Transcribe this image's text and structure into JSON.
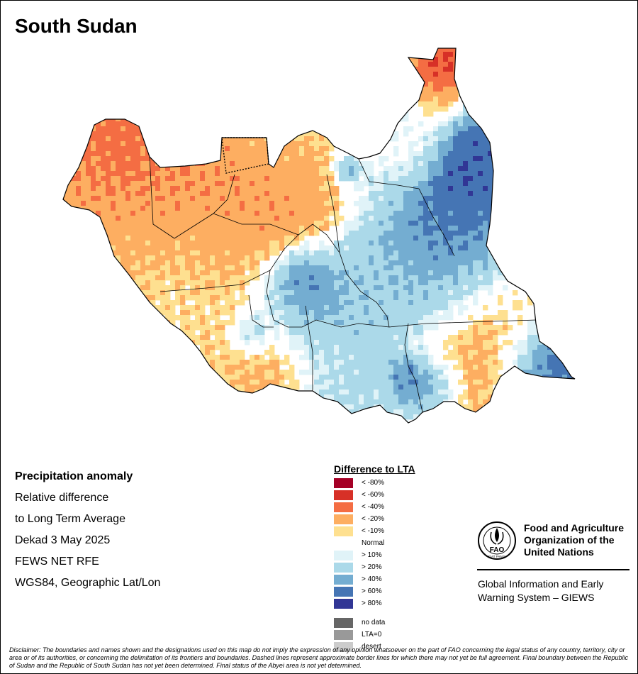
{
  "map": {
    "title": "South Sudan"
  },
  "info": {
    "heading": "Precipitation anomaly",
    "line1": "Relative difference",
    "line2": "to Long Term Average",
    "period": "Dekad 3 May 2025",
    "source": "FEWS NET RFE",
    "projection": "WGS84, Geographic Lat/Lon"
  },
  "legend": {
    "title": "Difference to LTA",
    "items": [
      {
        "label": "< -80%",
        "color": "#a50026"
      },
      {
        "label": "< -60%",
        "color": "#d73027"
      },
      {
        "label": "< -40%",
        "color": "#f46d43"
      },
      {
        "label": "< -20%",
        "color": "#fdae61"
      },
      {
        "label": "< -10%",
        "color": "#fee090"
      },
      {
        "label": "Normal",
        "color": "#ffffff"
      },
      {
        "label": "> 10%",
        "color": "#e0f3f8"
      },
      {
        "label": "> 20%",
        "color": "#abd9e9"
      },
      {
        "label": "> 40%",
        "color": "#74add1"
      },
      {
        "label": "> 60%",
        "color": "#4575b4"
      },
      {
        "label": "> 80%",
        "color": "#313695"
      }
    ],
    "extra": [
      {
        "label": "no data",
        "color": "#666666"
      },
      {
        "label": "LTA=0",
        "color": "#999999"
      },
      {
        "label": "desert",
        "color": "#cccccc"
      }
    ]
  },
  "fao": {
    "emblem_text": "FAO",
    "emblem_motto": "FIAT PANIS",
    "name_line1": "Food and Agriculture",
    "name_line2": "Organization of the",
    "name_line3": "United Nations",
    "giews_line1": "Global Information and Early",
    "giews_line2": "Warning System – GIEWS"
  },
  "disclaimer": "Disclaimer: The boundaries and names shown and the designations used on this map do not imply the expression of any opinion whatsoever on the part of FAO concerning the legal status of any country, territory, city or area or of its authorities, or concerning the delimitation of its frontiers and boundaries. Dashed lines represent approximate border lines for which there may not yet be full agreement. Final boundary between the Republic of Sudan and the Republic of South Sudan has not yet been determined. Final status of the Abyei area is not yet determined."
}
